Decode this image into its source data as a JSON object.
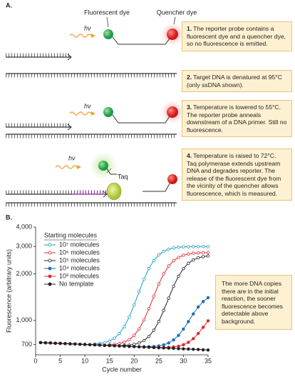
{
  "panel_a": {
    "label": "A.",
    "fluorescent_dye_label": "Fluorescent dye",
    "quencher_dye_label": "Quencher dye",
    "light_labels": [
      "hν",
      "hν",
      "hν",
      "hν"
    ],
    "enzyme_label": "Taq",
    "steps": [
      {
        "number": "1.",
        "text": "The reporter probe contains a fluorescent dye and a quencher dye, so no fluorescence is emitted."
      },
      {
        "number": "2.",
        "text": "Target DNA is denatured at 95°C (only ssDNA shown)."
      },
      {
        "number": "3.",
        "text": "Temperature is lowered to 55°C. The reporter probe anneals downstream of a DNA primer. Still no fluorescence."
      },
      {
        "number": "4.",
        "text": "Temperature is raised to 72°C. Taq polymerase extends upstream DNA and degrades reporter. The release of the fluorescent dye from the vicinity of the quencher allows fluorescence, which is measured."
      }
    ]
  },
  "chart_data": {
    "type": "line",
    "panel_label": "B.",
    "xlabel": "Cycle number",
    "ylabel": "Fluorescence (arbitrary units)",
    "annotation": "The more DNA copies there are in the initial reaction, the sooner fluorescence becomes detectable above background.",
    "legend_title": "Starting molecules",
    "legend": "upper left",
    "yscale": "log",
    "xlim": [
      0,
      35
    ],
    "xticks": [
      0,
      5,
      10,
      15,
      20,
      25,
      30,
      35
    ],
    "ylim": [
      600,
      4000
    ],
    "yticks": [
      700,
      {
        "value": 1000,
        "label": "1,000"
      },
      {
        "value": 2000,
        "label": "2,000"
      },
      {
        "value": 3000,
        "label": "3,000"
      },
      {
        "value": 4000,
        "label": "4,000"
      }
    ],
    "x": [
      1,
      2,
      3,
      4,
      5,
      6,
      7,
      8,
      9,
      10,
      11,
      12,
      13,
      14,
      15,
      16,
      17,
      18,
      19,
      20,
      21,
      22,
      23,
      24,
      25,
      26,
      27,
      28,
      29,
      30,
      31,
      32,
      33,
      34,
      35
    ],
    "series": [
      {
        "name": "10⁷ molecules",
        "color": "#1c9cc4",
        "marker": "open",
        "values": [
          720,
          718,
          716,
          713,
          711,
          709,
          707,
          705,
          702,
          700,
          698,
          705,
          710,
          718,
          736,
          768,
          823,
          913,
          1053,
          1260,
          1534,
          1849,
          2164,
          2436,
          2644,
          2783,
          2876,
          2932,
          2961,
          2980,
          2988,
          2993,
          2995,
          2994,
          2994
        ]
      },
      {
        "name": "10⁶ molecules",
        "color": "#e3262e",
        "marker": "open",
        "values": [
          720,
          718,
          716,
          713,
          711,
          709,
          707,
          705,
          702,
          700,
          698,
          696,
          694,
          691,
          697,
          701,
          709,
          725,
          751,
          801,
          882,
          1008,
          1193,
          1436,
          1717,
          1999,
          2242,
          2427,
          2548,
          2634,
          2681,
          2710,
          2727,
          2732,
          2737
        ]
      },
      {
        "name": "10⁵ molecules",
        "color": "#231f20",
        "marker": "open",
        "values": [
          720,
          718,
          716,
          713,
          711,
          709,
          707,
          705,
          702,
          700,
          698,
          696,
          694,
          691,
          689,
          687,
          685,
          691,
          693,
          701,
          716,
          742,
          789,
          865,
          985,
          1161,
          1393,
          1661,
          1928,
          2160,
          2336,
          2454,
          2534,
          2579,
          2605
        ]
      },
      {
        "name": "10⁴ molecules",
        "color": "#1a6fb5",
        "marker": "filled",
        "values": [
          720,
          718,
          716,
          713,
          711,
          709,
          707,
          705,
          702,
          700,
          698,
          696,
          694,
          691,
          689,
          687,
          685,
          683,
          680,
          678,
          676,
          677,
          678,
          679,
          685,
          696,
          716,
          749,
          801,
          879,
          983,
          1102,
          1222,
          1324,
          1402
        ]
      },
      {
        "name": "10³ molecules",
        "color": "#e3262e",
        "marker": "filled",
        "values": [
          720,
          718,
          716,
          713,
          711,
          709,
          707,
          705,
          702,
          700,
          698,
          696,
          694,
          691,
          689,
          687,
          685,
          683,
          680,
          678,
          676,
          674,
          672,
          669,
          670,
          670,
          671,
          675,
          682,
          697,
          723,
          763,
          824,
          903,
          995
        ]
      },
      {
        "name": "No template",
        "color": "#231f20",
        "marker": "filled",
        "values": [
          720,
          718,
          716,
          713,
          711,
          709,
          707,
          705,
          702,
          700,
          698,
          696,
          694,
          691,
          689,
          687,
          685,
          683,
          680,
          678,
          676,
          674,
          672,
          669,
          667,
          665,
          663,
          661,
          658,
          656,
          654,
          652,
          650,
          647,
          645
        ]
      }
    ]
  }
}
